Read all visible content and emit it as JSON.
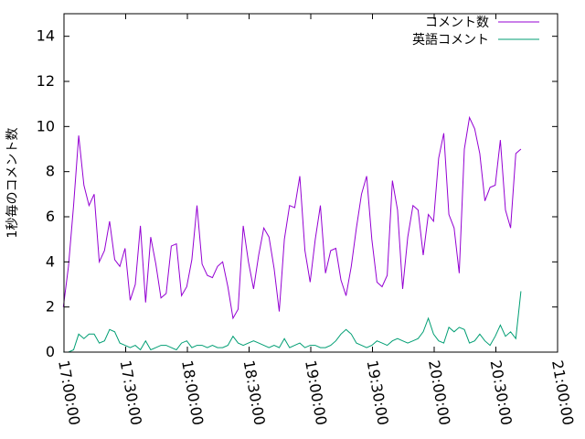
{
  "chart_data": {
    "type": "line",
    "title": "",
    "xlabel": "",
    "ylabel": "1秒毎のコメント数",
    "ylim": [
      0,
      15
    ],
    "xlim": [
      "17:00:00",
      "21:00:00"
    ],
    "yticks": [
      0,
      2,
      4,
      6,
      8,
      10,
      12,
      14
    ],
    "xticks": [
      "17:00:00",
      "17:30:00",
      "18:00:00",
      "18:30:00",
      "19:00:00",
      "19:30:00",
      "20:00:00",
      "20:30:00",
      "21:00:00"
    ],
    "grid": false,
    "legend_position": "top-right",
    "x": [
      "16:59:40",
      "17:02:10",
      "17:04:40",
      "17:07:10",
      "17:09:40",
      "17:12:10",
      "17:14:40",
      "17:17:10",
      "17:19:40",
      "17:22:10",
      "17:24:40",
      "17:27:10",
      "17:29:40",
      "17:32:10",
      "17:34:40",
      "17:37:10",
      "17:39:40",
      "17:42:10",
      "17:44:40",
      "17:47:10",
      "17:49:40",
      "17:52:10",
      "17:54:40",
      "17:57:10",
      "17:59:40",
      "18:02:10",
      "18:04:40",
      "18:07:10",
      "18:09:40",
      "18:12:10",
      "18:14:40",
      "18:17:10",
      "18:19:40",
      "18:22:10",
      "18:24:40",
      "18:27:10",
      "18:29:40",
      "18:32:10",
      "18:34:40",
      "18:37:10",
      "18:39:40",
      "18:42:10",
      "18:44:40",
      "18:47:10",
      "18:49:40",
      "18:52:10",
      "18:54:40",
      "18:57:10",
      "18:59:40",
      "19:02:10",
      "19:04:40",
      "19:07:10",
      "19:09:40",
      "19:12:10",
      "19:14:40",
      "19:17:10",
      "19:19:40",
      "19:22:10",
      "19:24:40",
      "19:27:10",
      "19:29:40",
      "19:32:10",
      "19:34:40",
      "19:37:10",
      "19:39:40",
      "19:42:10",
      "19:44:40",
      "19:47:10",
      "19:49:40",
      "19:52:10",
      "19:54:40",
      "19:57:10",
      "19:59:40",
      "20:02:10",
      "20:04:40",
      "20:07:10",
      "20:09:40",
      "20:12:10",
      "20:14:40",
      "20:17:10",
      "20:19:40",
      "20:22:10",
      "20:24:40",
      "20:27:10",
      "20:29:40",
      "20:32:10",
      "20:34:40",
      "20:37:10",
      "20:39:40",
      "20:42:10"
    ],
    "series": [
      {
        "name": "コメント数",
        "color": "#9400d3",
        "values": [
          2.0,
          3.8,
          6.5,
          9.6,
          7.4,
          6.5,
          7.0,
          4.0,
          4.5,
          5.8,
          4.1,
          3.8,
          4.6,
          2.3,
          3.0,
          5.6,
          2.2,
          5.1,
          3.9,
          2.4,
          2.6,
          4.7,
          4.8,
          2.5,
          2.9,
          4.1,
          6.5,
          3.9,
          3.4,
          3.3,
          3.8,
          4.0,
          2.9,
          1.5,
          1.9,
          5.6,
          4.0,
          2.8,
          4.3,
          5.5,
          5.1,
          3.7,
          1.8,
          5.0,
          6.5,
          6.4,
          7.8,
          4.5,
          3.1,
          5.0,
          6.5,
          3.5,
          4.5,
          4.6,
          3.2,
          2.5,
          3.8,
          5.5,
          7.0,
          7.8,
          5.0,
          3.1,
          2.9,
          3.4,
          7.6,
          6.3,
          2.8,
          5.1,
          6.5,
          6.3,
          4.3,
          6.1,
          5.8,
          8.6,
          9.7,
          6.1,
          5.5,
          3.5,
          9.0,
          10.4,
          9.9,
          8.8,
          6.7,
          7.3,
          7.4,
          9.4,
          6.3,
          5.5,
          8.8,
          9.0
        ]
      },
      {
        "name": "英語コメント",
        "color": "#009e73",
        "values": [
          0.0,
          0.0,
          0.1,
          0.8,
          0.6,
          0.8,
          0.8,
          0.4,
          0.5,
          1.0,
          0.9,
          0.4,
          0.3,
          0.2,
          0.3,
          0.1,
          0.5,
          0.1,
          0.2,
          0.3,
          0.3,
          0.2,
          0.1,
          0.4,
          0.5,
          0.2,
          0.3,
          0.3,
          0.2,
          0.3,
          0.2,
          0.2,
          0.3,
          0.7,
          0.4,
          0.3,
          0.4,
          0.5,
          0.4,
          0.3,
          0.2,
          0.3,
          0.2,
          0.6,
          0.2,
          0.3,
          0.4,
          0.2,
          0.3,
          0.3,
          0.2,
          0.2,
          0.3,
          0.5,
          0.8,
          1.0,
          0.8,
          0.4,
          0.3,
          0.2,
          0.3,
          0.5,
          0.4,
          0.3,
          0.5,
          0.6,
          0.5,
          0.4,
          0.5,
          0.6,
          0.9,
          1.5,
          0.8,
          0.5,
          0.4,
          1.1,
          0.9,
          1.1,
          1.0,
          0.4,
          0.5,
          0.8,
          0.5,
          0.3,
          0.7,
          1.2,
          0.7,
          0.9,
          0.6,
          2.7
        ]
      }
    ]
  }
}
